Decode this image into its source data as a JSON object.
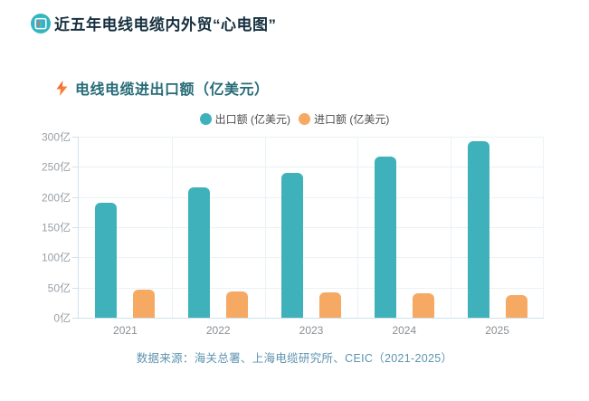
{
  "header": {
    "title": "近五年电线电缆内外贸“心电图”"
  },
  "chart": {
    "title": "电线电缆进出口额（亿美元）",
    "source": "数据来源：海关总署、上海电缆研究所、CEIC（2021-2025）"
  },
  "chart_data": {
    "type": "bar",
    "title": "电线电缆进出口额（亿美元）",
    "categories": [
      "2021",
      "2022",
      "2023",
      "2024",
      "2025"
    ],
    "series": [
      {
        "name": "出口额 (亿美元)",
        "key": "export",
        "color": "#3fb1bb",
        "values": [
          190,
          216,
          240,
          267,
          292
        ]
      },
      {
        "name": "进口额 (亿美元)",
        "key": "import",
        "color": "#f5a963",
        "values": [
          46,
          44,
          42,
          40,
          37
        ]
      }
    ],
    "xlabel": "",
    "ylabel": "",
    "ylim": [
      0,
      300
    ],
    "ytick_step": 50,
    "ytick_suffix": "亿",
    "grid": true,
    "legend_position": "top"
  },
  "icons": {
    "app_icon": "bar-chart-badge",
    "title_icon": "lightning-bolt"
  },
  "colors": {
    "main_title_text": "#16303f",
    "chart_title_text": "#256b77",
    "source_text": "#5e93af",
    "gridline": "#e9f2f6",
    "axis_line": "#cfe2ec"
  }
}
